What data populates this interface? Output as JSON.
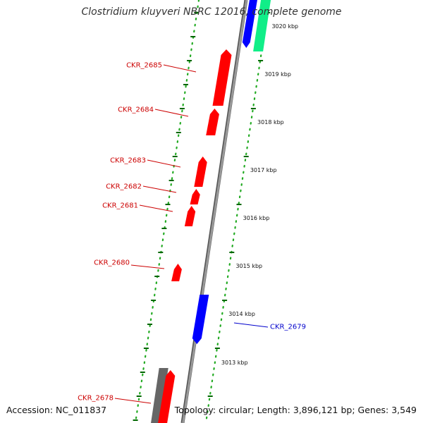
{
  "title": "Clostridium kluyveri NBRC 12016, complete genome",
  "footer": {
    "accession": "Accession: NC_011837",
    "summary": "Topology: circular; Length: 3,896,121 bp; Genes: 3,549"
  },
  "colors": {
    "forward_gene": "#ff0000",
    "reverse_gene": "#0000ff",
    "rna_gene": "#11ee88",
    "other_feature": "#666666",
    "backbone": "#999999",
    "tick": "#006600",
    "ruler_dots": "#22aa22",
    "forward_label": "#cc0000",
    "reverse_label": "#0000cc"
  },
  "ticks": [
    {
      "label": "3020 kbp",
      "kbp": 3020
    },
    {
      "label": "3019 kbp",
      "kbp": 3019
    },
    {
      "label": "3018 kbp",
      "kbp": 3018
    },
    {
      "label": "3017 kbp",
      "kbp": 3017
    },
    {
      "label": "3016 kbp",
      "kbp": 3016
    },
    {
      "label": "3015 kbp",
      "kbp": 3015
    },
    {
      "label": "3014 kbp",
      "kbp": 3014
    },
    {
      "label": "3013 kbp",
      "kbp": 3013
    }
  ],
  "genes": [
    {
      "label": "CKR_2685",
      "strand": "forward"
    },
    {
      "label": "CKR_2684",
      "strand": "forward"
    },
    {
      "label": "CKR_2683",
      "strand": "forward"
    },
    {
      "label": "CKR_2682",
      "strand": "forward"
    },
    {
      "label": "CKR_2681",
      "strand": "forward"
    },
    {
      "label": "CKR_2680",
      "strand": "forward"
    },
    {
      "label": "CKR_2679",
      "strand": "reverse"
    },
    {
      "label": "CKR_2678",
      "strand": "forward"
    }
  ]
}
